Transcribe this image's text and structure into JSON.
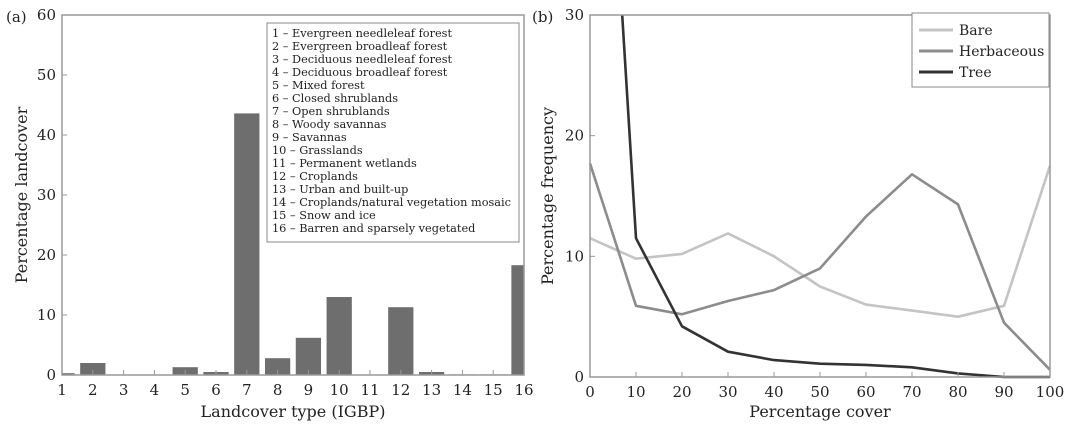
{
  "chart_data": [
    {
      "type": "bar",
      "panel_label": "(a)",
      "xlabel": "Landcover type (IGBP)",
      "ylabel": "Percentage landcover",
      "ylim": [
        0,
        60
      ],
      "yticks": [
        0,
        10,
        20,
        30,
        40,
        50,
        60
      ],
      "categories": [
        "1",
        "2",
        "3",
        "4",
        "5",
        "6",
        "7",
        "8",
        "9",
        "10",
        "11",
        "12",
        "13",
        "14",
        "15",
        "16"
      ],
      "values": [
        0.3,
        2.0,
        0,
        0,
        1.3,
        0.5,
        43.6,
        2.8,
        6.2,
        13.0,
        0,
        11.3,
        0.5,
        0.1,
        0.1,
        18.3
      ],
      "bar_color": "#6e6e6e",
      "legend": [
        "1 – Evergreen needleleaf forest",
        "2 – Evergreen broadleaf forest",
        "3 – Deciduous needleleaf forest",
        "4 – Deciduous broadleaf forest",
        "5 – Mixed forest",
        "6 – Closed shrublands",
        "7 – Open shrublands",
        "8 – Woody savannas",
        "9 – Savannas",
        "10 – Grasslands",
        "11 – Permanent wetlands",
        "12 – Croplands",
        "13 – Urban and built-up",
        "14 – Croplands/natural vegetation mosaic",
        "15 – Snow and ice",
        "16 – Barren and sparsely vegetated"
      ],
      "legend_position": "top-right"
    },
    {
      "type": "line",
      "panel_label": "(b)",
      "xlabel": "Percentage cover",
      "ylabel": "Percentage frequency",
      "xlim": [
        0,
        100
      ],
      "ylim": [
        0,
        30
      ],
      "xticks": [
        0,
        10,
        20,
        30,
        40,
        50,
        60,
        70,
        80,
        90,
        100
      ],
      "yticks": [
        0,
        10,
        20,
        30
      ],
      "legend_position": "top-right",
      "series": [
        {
          "name": "Bare",
          "color": "#c4c4c4",
          "x": [
            0,
            10,
            20,
            30,
            40,
            50,
            60,
            70,
            80,
            90,
            100
          ],
          "y": [
            11.5,
            9.8,
            10.2,
            11.9,
            10.0,
            7.5,
            6.0,
            5.5,
            5.0,
            5.9,
            17.5
          ]
        },
        {
          "name": "Herbaceous",
          "color": "#8c8c8c",
          "x": [
            0,
            10,
            20,
            30,
            40,
            50,
            60,
            70,
            80,
            90,
            100
          ],
          "y": [
            17.7,
            5.9,
            5.2,
            6.3,
            7.2,
            9.0,
            13.3,
            16.8,
            14.3,
            4.5,
            0.6
          ]
        },
        {
          "name": "Tree",
          "color": "#333333",
          "x": [
            7,
            10,
            20,
            30,
            40,
            50,
            60,
            70,
            80,
            90,
            100
          ],
          "y": [
            30,
            11.5,
            4.2,
            2.1,
            1.4,
            1.1,
            1.0,
            0.8,
            0.3,
            0.0,
            0.0
          ]
        }
      ]
    }
  ]
}
